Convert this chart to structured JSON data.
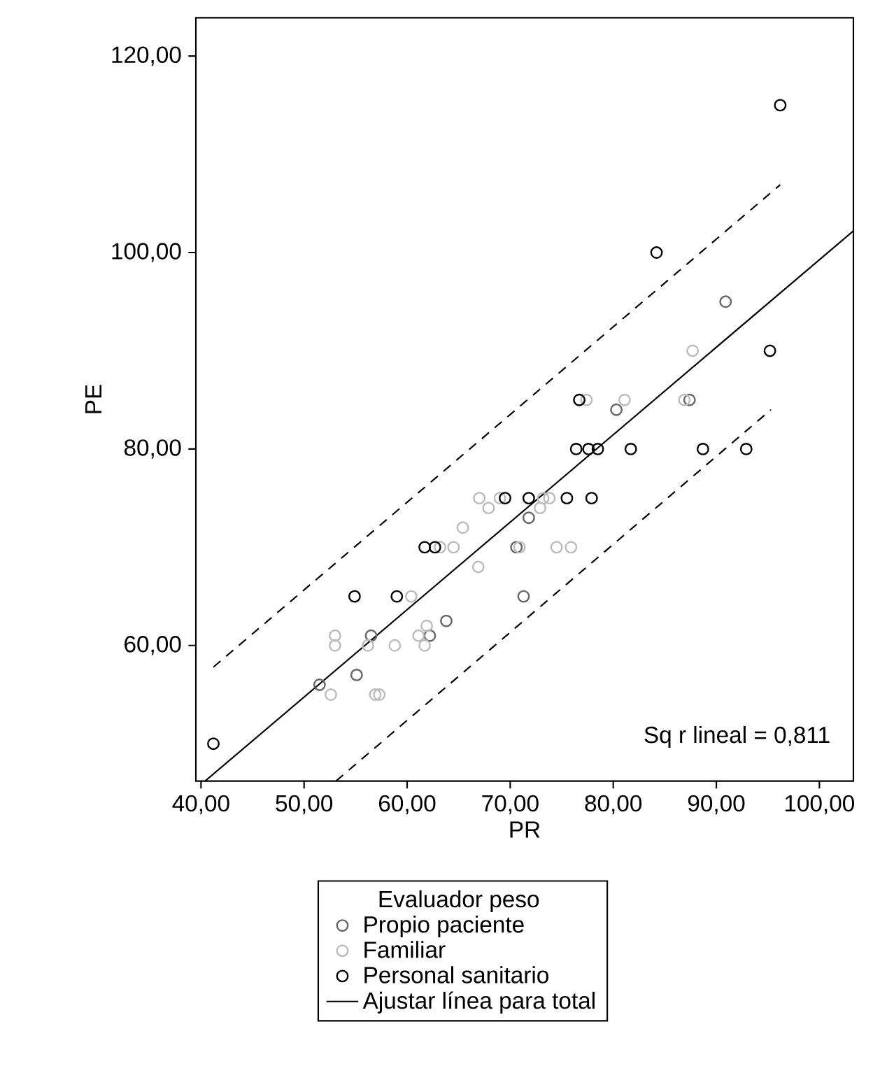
{
  "chart_data": {
    "type": "scatter",
    "xlabel": "PR",
    "ylabel": "PE",
    "legend_title": "Evaluador peso",
    "annotations": [
      "Sq r lineal = 0,811"
    ],
    "xlim": [
      39.5,
      103.3
    ],
    "ylim": [
      46.2,
      123.9
    ],
    "xticks": [
      {
        "value": 40,
        "label": "40,00"
      },
      {
        "value": 50,
        "label": "50,00"
      },
      {
        "value": 60,
        "label": "60,00"
      },
      {
        "value": 70,
        "label": "70,00"
      },
      {
        "value": 80,
        "label": "80,00"
      },
      {
        "value": 90,
        "label": "90,00"
      },
      {
        "value": 100,
        "label": "100,00"
      }
    ],
    "yticks": [
      {
        "value": 60,
        "label": "60,00"
      },
      {
        "value": 80,
        "label": "80,00"
      },
      {
        "value": 100,
        "label": "100,00"
      },
      {
        "value": 120,
        "label": "120,00"
      }
    ],
    "grid": false,
    "legend": "bottom",
    "marker": "circle",
    "series": [
      {
        "name": "Propio paciente",
        "color": "#666666",
        "x": [
          90.9,
          80.3,
          87.4,
          71.8,
          70.6,
          71.3,
          63.8,
          56.5,
          62.2,
          55.1,
          51.5
        ],
        "values": [
          95,
          84,
          85,
          73,
          70,
          65,
          62.5,
          61,
          61,
          57,
          56
        ]
      },
      {
        "name": "Familiar",
        "color": "#bbbbbb",
        "x": [
          87.7,
          77.4,
          81.1,
          86.9,
          67.0,
          69.0,
          73.2,
          73.8,
          67.9,
          72.9,
          65.4,
          63.2,
          64.5,
          70.9,
          74.5,
          75.9,
          66.9,
          60.4,
          61.9,
          53.0,
          61.1,
          53.0,
          56.2,
          58.8,
          61.7,
          52.6,
          56.9,
          57.3
        ],
        "values": [
          90,
          85,
          85,
          85,
          75,
          75,
          75,
          75,
          74,
          74,
          72,
          70,
          70,
          70,
          70,
          70,
          68,
          65,
          62,
          61,
          61,
          60,
          60,
          60,
          60,
          55,
          55,
          55
        ]
      },
      {
        "name": "Personal sanitario",
        "color": "#000000",
        "x": [
          96.2,
          84.2,
          95.2,
          76.7,
          76.4,
          77.6,
          78.5,
          81.7,
          88.7,
          92.9,
          69.5,
          71.8,
          75.5,
          77.9,
          61.7,
          62.7,
          54.9,
          59.0,
          41.2
        ],
        "values": [
          115,
          100,
          90,
          85,
          80,
          80,
          80,
          80,
          80,
          80,
          75,
          75,
          75,
          75,
          70,
          70,
          65,
          65,
          50
        ]
      },
      {
        "name": "Ajustar línea para total",
        "type": "line",
        "marker": "none",
        "color": "#000000",
        "line_style": "solid",
        "x": [
          40.4,
          103.3
        ],
        "values": [
          46.2,
          102.2
        ]
      },
      {
        "type": "line",
        "marker": "none",
        "color": "#000000",
        "line_style": "dashed",
        "x": [
          41.2,
          96.2
        ],
        "values": [
          57.8,
          106.9
        ]
      },
      {
        "type": "line",
        "marker": "none",
        "color": "#000000",
        "line_style": "dashed",
        "x": [
          53.1,
          95.3
        ],
        "values": [
          46.2,
          84.0
        ]
      }
    ]
  }
}
